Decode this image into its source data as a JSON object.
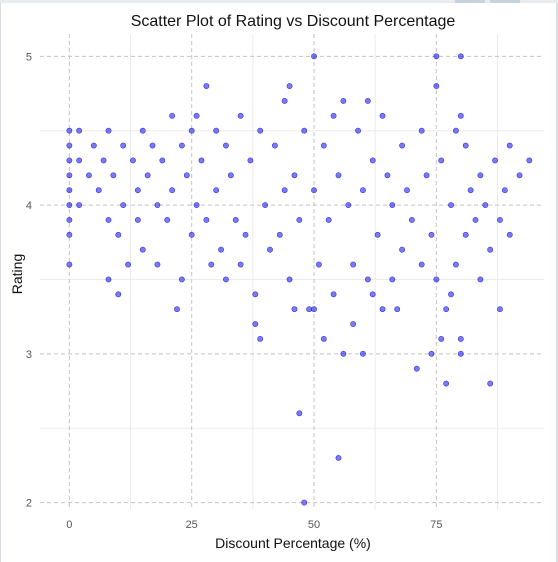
{
  "chart_data": {
    "type": "scatter",
    "title": "Scatter Plot of Rating vs Discount Percentage",
    "xlabel": "Discount Percentage (%)",
    "ylabel": "Rating",
    "xlim": [
      -6,
      97
    ],
    "ylim": [
      1.95,
      5.15
    ],
    "xticks": [
      0,
      25,
      50,
      75
    ],
    "yticks": [
      2,
      3,
      4,
      5
    ],
    "xtick_labels": [
      "0",
      "25",
      "50",
      "75"
    ],
    "ytick_labels": [
      "2",
      "3",
      "4",
      "5"
    ],
    "grid": "dashed",
    "marker_color": "#2222ee",
    "series": [
      {
        "points": [
          [
            0,
            4.5
          ],
          [
            0,
            4.4
          ],
          [
            0,
            4.3
          ],
          [
            0,
            4.2
          ],
          [
            0,
            4.1
          ],
          [
            0,
            4.0
          ],
          [
            0,
            3.9
          ],
          [
            0,
            3.8
          ],
          [
            0,
            3.6
          ],
          [
            2,
            4.5
          ],
          [
            2,
            4.3
          ],
          [
            2,
            4.0
          ],
          [
            4,
            4.2
          ],
          [
            5,
            4.4
          ],
          [
            6,
            4.1
          ],
          [
            7,
            4.3
          ],
          [
            8,
            4.5
          ],
          [
            8,
            3.9
          ],
          [
            8,
            3.5
          ],
          [
            9,
            4.2
          ],
          [
            10,
            3.8
          ],
          [
            10,
            3.4
          ],
          [
            11,
            4.4
          ],
          [
            11,
            4.0
          ],
          [
            12,
            3.6
          ],
          [
            13,
            4.3
          ],
          [
            14,
            4.1
          ],
          [
            14,
            3.9
          ],
          [
            15,
            4.5
          ],
          [
            15,
            3.7
          ],
          [
            16,
            4.2
          ],
          [
            17,
            4.4
          ],
          [
            18,
            4.0
          ],
          [
            18,
            3.6
          ],
          [
            19,
            4.3
          ],
          [
            20,
            3.9
          ],
          [
            21,
            4.6
          ],
          [
            21,
            4.1
          ],
          [
            22,
            3.3
          ],
          [
            23,
            4.4
          ],
          [
            23,
            3.5
          ],
          [
            24,
            4.2
          ],
          [
            25,
            4.5
          ],
          [
            25,
            3.8
          ],
          [
            26,
            4.6
          ],
          [
            26,
            4.0
          ],
          [
            27,
            4.3
          ],
          [
            28,
            4.8
          ],
          [
            28,
            3.9
          ],
          [
            29,
            3.6
          ],
          [
            30,
            4.5
          ],
          [
            30,
            4.1
          ],
          [
            31,
            3.7
          ],
          [
            32,
            4.4
          ],
          [
            32,
            3.5
          ],
          [
            33,
            4.2
          ],
          [
            34,
            3.9
          ],
          [
            35,
            4.6
          ],
          [
            35,
            3.6
          ],
          [
            36,
            3.8
          ],
          [
            37,
            4.3
          ],
          [
            38,
            3.4
          ],
          [
            38,
            3.2
          ],
          [
            39,
            4.5
          ],
          [
            39,
            3.1
          ],
          [
            40,
            4.0
          ],
          [
            41,
            3.7
          ],
          [
            42,
            4.4
          ],
          [
            43,
            3.8
          ],
          [
            44,
            4.7
          ],
          [
            44,
            4.1
          ],
          [
            45,
            4.8
          ],
          [
            45,
            3.5
          ],
          [
            46,
            4.2
          ],
          [
            46,
            3.3
          ],
          [
            47,
            2.6
          ],
          [
            47,
            3.9
          ],
          [
            48,
            4.5
          ],
          [
            48,
            2.0
          ],
          [
            49,
            3.3
          ],
          [
            50,
            5.0
          ],
          [
            50,
            4.1
          ],
          [
            50,
            3.3
          ],
          [
            51,
            3.6
          ],
          [
            52,
            4.4
          ],
          [
            52,
            3.1
          ],
          [
            53,
            3.9
          ],
          [
            54,
            4.6
          ],
          [
            54,
            3.4
          ],
          [
            55,
            2.3
          ],
          [
            55,
            4.2
          ],
          [
            56,
            4.7
          ],
          [
            56,
            3.0
          ],
          [
            57,
            4.0
          ],
          [
            58,
            3.6
          ],
          [
            58,
            3.2
          ],
          [
            59,
            4.5
          ],
          [
            60,
            3.0
          ],
          [
            60,
            4.1
          ],
          [
            61,
            4.7
          ],
          [
            61,
            3.5
          ],
          [
            62,
            4.3
          ],
          [
            62,
            3.4
          ],
          [
            63,
            3.8
          ],
          [
            64,
            4.6
          ],
          [
            64,
            3.3
          ],
          [
            65,
            4.2
          ],
          [
            66,
            4.0
          ],
          [
            66,
            3.5
          ],
          [
            67,
            3.3
          ],
          [
            68,
            4.4
          ],
          [
            68,
            3.7
          ],
          [
            69,
            4.1
          ],
          [
            70,
            3.9
          ],
          [
            71,
            2.9
          ],
          [
            72,
            4.5
          ],
          [
            72,
            3.6
          ],
          [
            73,
            4.2
          ],
          [
            74,
            3.0
          ],
          [
            74,
            3.8
          ],
          [
            75,
            5.0
          ],
          [
            75,
            4.8
          ],
          [
            75,
            3.5
          ],
          [
            76,
            4.3
          ],
          [
            76,
            3.1
          ],
          [
            77,
            3.3
          ],
          [
            77,
            2.8
          ],
          [
            78,
            4.0
          ],
          [
            78,
            3.4
          ],
          [
            79,
            4.5
          ],
          [
            79,
            3.6
          ],
          [
            80,
            5.0
          ],
          [
            80,
            4.6
          ],
          [
            80,
            3.0
          ],
          [
            80,
            3.1
          ],
          [
            81,
            4.4
          ],
          [
            81,
            3.8
          ],
          [
            82,
            4.1
          ],
          [
            83,
            3.9
          ],
          [
            84,
            4.2
          ],
          [
            84,
            3.5
          ],
          [
            85,
            4.0
          ],
          [
            86,
            2.8
          ],
          [
            86,
            3.7
          ],
          [
            87,
            4.3
          ],
          [
            88,
            3.3
          ],
          [
            88,
            3.9
          ],
          [
            89,
            4.1
          ],
          [
            90,
            4.4
          ],
          [
            90,
            3.8
          ],
          [
            92,
            4.2
          ],
          [
            94,
            4.3
          ]
        ]
      }
    ]
  }
}
